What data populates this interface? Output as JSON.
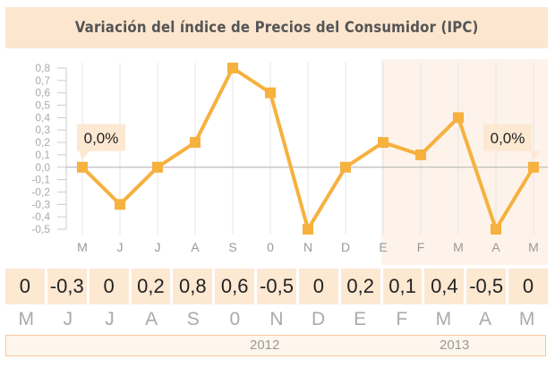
{
  "chart_data": {
    "type": "line",
    "title": "Variación del índice de Precios del Consumidor (IPC)",
    "categories": [
      "M",
      "J",
      "J",
      "A",
      "S",
      "0",
      "N",
      "D",
      "E",
      "F",
      "M",
      "A",
      "M"
    ],
    "values": [
      0.0,
      -0.3,
      0.0,
      0.2,
      0.8,
      0.6,
      -0.5,
      0.0,
      0.2,
      0.1,
      0.4,
      -0.5,
      0.0
    ],
    "value_labels": [
      "0",
      "-0,3",
      "0",
      "0,2",
      "0,8",
      "0,6",
      "-0,5",
      "0",
      "0,2",
      "0,1",
      "0,4",
      "-0,5",
      "0"
    ],
    "yticks": [
      "0,8",
      "0,7",
      "0,6",
      "0,5",
      "0,4",
      "0,3",
      "0,2",
      "0,1",
      "0,0",
      "-0,1",
      "-0,2",
      "-0,3",
      "-0,4",
      "-0,5"
    ],
    "ylim": [
      -0.5,
      0.8
    ],
    "callouts": [
      {
        "index": 0,
        "text": "0,0%"
      },
      {
        "index": 12,
        "text": "0,0%"
      }
    ],
    "years": [
      "2012",
      "2013"
    ],
    "year_split_index": 8,
    "grid": true,
    "colors": {
      "line": "#f6b13e",
      "marker": "#f6b13e",
      "axis": "#cccccc",
      "grid": "#e4e4e4",
      "highlight_band": "#fdf3ea"
    }
  }
}
